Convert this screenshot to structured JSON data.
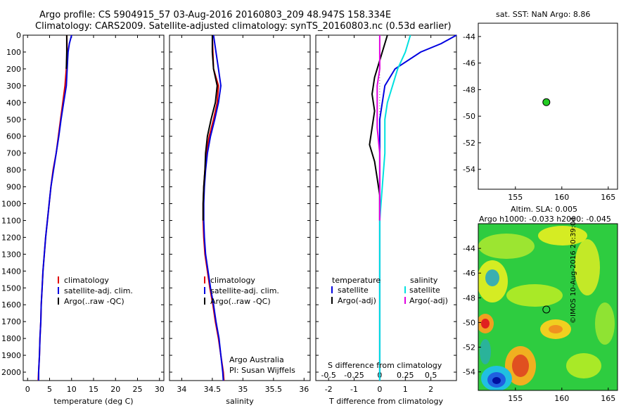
{
  "header": {
    "line1": "Argo profile: CS 5904915_57 03-Aug-2016 20160803_209 48.947S 158.334E",
    "line2": "Climatology: CARS2009. Satellite-adjusted climatology: synTS_20160803.nc (0.53d earlier)"
  },
  "sst_title": "sat. SST: NaN Argo: 8.86",
  "sla_title1": "Altim. SLA: 0.005",
  "sla_title2": "Argo h1000: -0.033 h2000: -0.045",
  "watermark": "©IMOS 10-Aug-2016 20:39:04",
  "credit1": "Argo Australia",
  "credit2": "PI: Susan Wijffels",
  "legend_main": [
    {
      "label": "climatology",
      "color": "#e00000"
    },
    {
      "label": "satellite-adj. clim.",
      "color": "#0000e0"
    },
    {
      "label": "Argo(..raw -QC)",
      "color": "#000000"
    }
  ],
  "legend_diff": {
    "temp_header": "temperature",
    "sal_header": "salinity",
    "temp_items": [
      {
        "label": "satellite",
        "color": "#0000e0"
      },
      {
        "label": "Argo(-adj)",
        "color": "#000000"
      }
    ],
    "sal_items": [
      {
        "label": "satellite",
        "color": "#00e0e0"
      },
      {
        "label": "Argo(-adj)",
        "color": "#e000e0"
      }
    ]
  },
  "chart_data": [
    {
      "type": "line",
      "xlabel": "temperature (deg C)",
      "ylabel": "",
      "xlim": [
        -1,
        31
      ],
      "ylim": [
        2050,
        0
      ],
      "xticks": [
        0,
        5,
        10,
        15,
        20,
        25,
        30
      ],
      "yticks": [
        0,
        100,
        200,
        300,
        400,
        500,
        600,
        700,
        800,
        900,
        1000,
        1100,
        1200,
        1300,
        1400,
        1500,
        1600,
        1700,
        1800,
        1900,
        2000
      ],
      "series": [
        {
          "name": "climatology",
          "color": "#e00000",
          "points": [
            [
              8.9,
              0
            ],
            [
              9.0,
              100
            ],
            [
              8.8,
              200
            ],
            [
              8.5,
              300
            ],
            [
              8.0,
              400
            ],
            [
              7.5,
              500
            ],
            [
              7.0,
              600
            ],
            [
              6.5,
              700
            ],
            [
              5.8,
              800
            ],
            [
              5.3,
              900
            ],
            [
              4.9,
              1000
            ],
            [
              4.5,
              1100
            ],
            [
              4.1,
              1200
            ],
            [
              3.8,
              1300
            ],
            [
              3.5,
              1400
            ],
            [
              3.3,
              1500
            ],
            [
              3.1,
              1600
            ],
            [
              3.0,
              1700
            ],
            [
              2.8,
              1800
            ],
            [
              2.7,
              1900
            ],
            [
              2.5,
              2000
            ],
            [
              2.4,
              2050
            ]
          ]
        },
        {
          "name": "satellite-adj. clim.",
          "color": "#0000e0",
          "points": [
            [
              10.0,
              0
            ],
            [
              9.5,
              50
            ],
            [
              9.2,
              100
            ],
            [
              9.1,
              150
            ],
            [
              9.0,
              200
            ],
            [
              8.8,
              300
            ],
            [
              8.2,
              400
            ],
            [
              7.6,
              500
            ],
            [
              7.1,
              600
            ],
            [
              6.5,
              700
            ],
            [
              5.9,
              800
            ],
            [
              5.3,
              900
            ],
            [
              4.9,
              1000
            ],
            [
              4.5,
              1100
            ],
            [
              4.1,
              1200
            ],
            [
              3.8,
              1300
            ],
            [
              3.5,
              1400
            ],
            [
              3.3,
              1500
            ],
            [
              3.1,
              1600
            ],
            [
              3.0,
              1700
            ],
            [
              2.8,
              1800
            ],
            [
              2.7,
              1900
            ],
            [
              2.5,
              2000
            ],
            [
              2.5,
              2050
            ]
          ]
        },
        {
          "name": "Argo(..raw -QC)",
          "color": "#000000",
          "points": [
            [
              8.9,
              0
            ],
            [
              8.9,
              100
            ],
            [
              8.8,
              200
            ]
          ]
        }
      ]
    },
    {
      "type": "line",
      "xlabel": "salinity",
      "ylabel": "",
      "xlim": [
        33.8,
        36.1
      ],
      "ylim": [
        2050,
        0
      ],
      "xticks": [
        34,
        34.5,
        35,
        35.5,
        36
      ],
      "yticks": [
        0,
        100,
        200,
        300,
        400,
        500,
        600,
        700,
        800,
        900,
        1000,
        1100,
        1200,
        1300,
        1400,
        1500,
        1600,
        1700,
        1800,
        1900,
        2000
      ],
      "series": [
        {
          "name": "climatology",
          "color": "#e00000",
          "points": [
            [
              34.5,
              0
            ],
            [
              34.51,
              100
            ],
            [
              34.52,
              200
            ],
            [
              34.6,
              300
            ],
            [
              34.58,
              400
            ],
            [
              34.52,
              500
            ],
            [
              34.45,
              600
            ],
            [
              34.4,
              700
            ],
            [
              34.38,
              800
            ],
            [
              34.36,
              900
            ],
            [
              34.35,
              1000
            ],
            [
              34.35,
              1100
            ],
            [
              34.36,
              1200
            ],
            [
              34.38,
              1300
            ],
            [
              34.42,
              1400
            ],
            [
              34.46,
              1500
            ],
            [
              34.51,
              1600
            ],
            [
              34.55,
              1700
            ],
            [
              34.6,
              1800
            ],
            [
              34.64,
              1900
            ],
            [
              34.68,
              2000
            ],
            [
              34.69,
              2050
            ]
          ]
        },
        {
          "name": "satellite-adj. clim.",
          "color": "#0000e0",
          "points": [
            [
              34.52,
              0
            ],
            [
              34.56,
              100
            ],
            [
              34.6,
              200
            ],
            [
              34.64,
              300
            ],
            [
              34.6,
              400
            ],
            [
              34.54,
              500
            ],
            [
              34.47,
              600
            ],
            [
              34.42,
              700
            ],
            [
              34.39,
              800
            ],
            [
              34.37,
              900
            ],
            [
              34.36,
              1000
            ],
            [
              34.36,
              1100
            ],
            [
              34.37,
              1200
            ],
            [
              34.39,
              1300
            ],
            [
              34.43,
              1400
            ],
            [
              34.47,
              1500
            ],
            [
              34.52,
              1600
            ],
            [
              34.56,
              1700
            ],
            [
              34.61,
              1800
            ],
            [
              34.64,
              1900
            ],
            [
              34.67,
              2000
            ],
            [
              34.68,
              2050
            ]
          ]
        },
        {
          "name": "Argo(..raw -QC)",
          "color": "#000000",
          "points": [
            [
              34.5,
              0
            ],
            [
              34.5,
              100
            ],
            [
              34.52,
              200
            ],
            [
              34.58,
              300
            ],
            [
              34.55,
              400
            ],
            [
              34.48,
              500
            ],
            [
              34.42,
              600
            ],
            [
              34.39,
              700
            ],
            [
              34.38,
              800
            ],
            [
              34.36,
              900
            ],
            [
              34.35,
              1000
            ],
            [
              34.35,
              1100
            ]
          ]
        }
      ]
    },
    {
      "type": "line",
      "xlabel": "T difference from climatology",
      "xlabel2": "S difference from climatology",
      "ylabel": "",
      "xlim": [
        -2.5,
        3
      ],
      "ylim": [
        2050,
        0
      ],
      "xticks": [
        -2,
        -1,
        0,
        1,
        2
      ],
      "xticks_top": [
        "-0.5",
        "-0.25",
        "0",
        "0.25",
        "0.5"
      ],
      "xticks_top_pos": [
        -2,
        -1,
        0,
        1,
        2
      ],
      "yticks": [
        0,
        100,
        200,
        300,
        400,
        500,
        600,
        700,
        800,
        900,
        1000,
        1100,
        1200,
        1300,
        1400,
        1500,
        1600,
        1700,
        1800,
        1900,
        2000
      ],
      "series": [
        {
          "name": "temperature satellite",
          "color": "#0000e0",
          "points": [
            [
              3.0,
              0
            ],
            [
              2.4,
              50
            ],
            [
              1.6,
              100
            ],
            [
              0.6,
              200
            ],
            [
              0.2,
              300
            ],
            [
              0.0,
              500
            ],
            [
              0.0,
              800
            ],
            [
              0.0,
              1100
            ],
            [
              0.0,
              1400
            ],
            [
              0.0,
              2050
            ]
          ]
        },
        {
          "name": "temperature Argo(-adj)",
          "color": "#000000",
          "points": [
            [
              0.3,
              0
            ],
            [
              0.0,
              150
            ],
            [
              -0.2,
              250
            ],
            [
              -0.3,
              350
            ],
            [
              -0.2,
              450
            ],
            [
              -0.3,
              550
            ],
            [
              -0.4,
              650
            ],
            [
              -0.2,
              750
            ],
            [
              -0.1,
              850
            ],
            [
              0.0,
              950
            ],
            [
              0.0,
              1100
            ]
          ]
        },
        {
          "name": "salinity satellite",
          "color": "#00e0e0",
          "points": [
            [
              1.2,
              0
            ],
            [
              1.0,
              100
            ],
            [
              0.7,
              200
            ],
            [
              0.5,
              300
            ],
            [
              0.3,
              400
            ],
            [
              0.2,
              500
            ],
            [
              0.2,
              700
            ],
            [
              0.1,
              900
            ],
            [
              0.0,
              1100
            ],
            [
              0.0,
              1500
            ],
            [
              0.0,
              2050
            ]
          ]
        },
        {
          "name": "salinity Argo(-adj)",
          "color": "#e000e0",
          "points": [
            [
              0.0,
              0
            ],
            [
              0.0,
              200
            ],
            [
              -0.1,
              300
            ],
            [
              -0.1,
              400
            ],
            [
              -0.1,
              550
            ],
            [
              0.0,
              700
            ],
            [
              0.0,
              900
            ],
            [
              0.0,
              1100
            ]
          ]
        }
      ]
    },
    {
      "type": "scatter",
      "title": "sat. SST: NaN Argo: 8.86",
      "xlim": [
        151,
        166
      ],
      "ylim": [
        -55.5,
        -43
      ],
      "xticks": [
        155,
        160,
        165
      ],
      "yticks": [
        -44,
        -46,
        -48,
        -50,
        -52,
        -54
      ],
      "points": [
        {
          "x": 158.334,
          "y": -48.947,
          "color": "#22cc22"
        }
      ]
    },
    {
      "type": "heatmap",
      "title": "Altim. SLA: 0.005",
      "xlim": [
        151,
        166
      ],
      "ylim": [
        -55.5,
        -42
      ],
      "xticks": [
        155,
        160,
        165
      ],
      "yticks": [
        -44,
        -46,
        -48,
        -50,
        -52,
        -54
      ],
      "points": [
        {
          "x": 158.334,
          "y": -48.947
        }
      ]
    }
  ]
}
